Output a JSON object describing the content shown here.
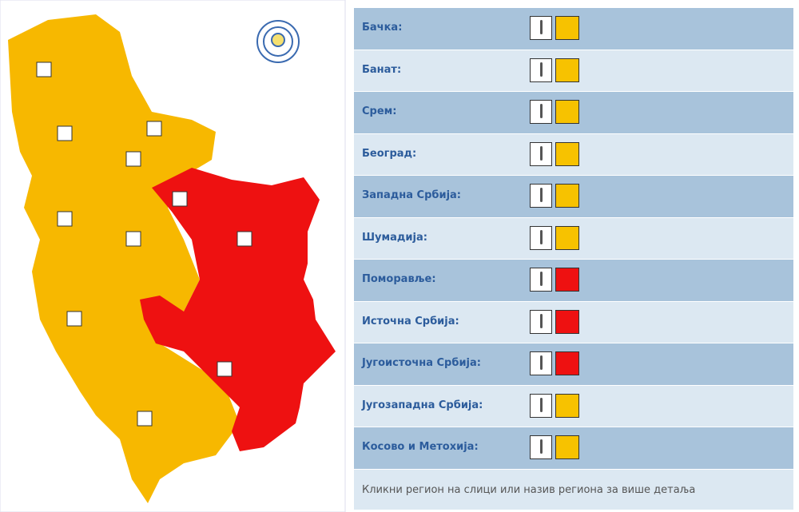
{
  "regions": [
    {
      "name": "Бачка:",
      "level_color": "#f7c200"
    },
    {
      "name": "Банат:",
      "level_color": "#f7c200"
    },
    {
      "name": "Срем:",
      "level_color": "#f7c200"
    },
    {
      "name": "Београд:",
      "level_color": "#f7c200"
    },
    {
      "name": "Западна Србија:",
      "level_color": "#f7c200"
    },
    {
      "name": "Шумадија:",
      "level_color": "#f7c200"
    },
    {
      "name": "Поморавље:",
      "level_color": "#ee1111"
    },
    {
      "name": "Источна Србија:",
      "level_color": "#ee1111"
    },
    {
      "name": "Југоисточна Србија:",
      "level_color": "#ee1111"
    },
    {
      "name": "Југозападна Србија:",
      "level_color": "#f7c200"
    },
    {
      "name": "Косово и Метохија:",
      "level_color": "#f7c200"
    }
  ],
  "note": "Кликни регион на слици или назив региона за више детаља"
}
